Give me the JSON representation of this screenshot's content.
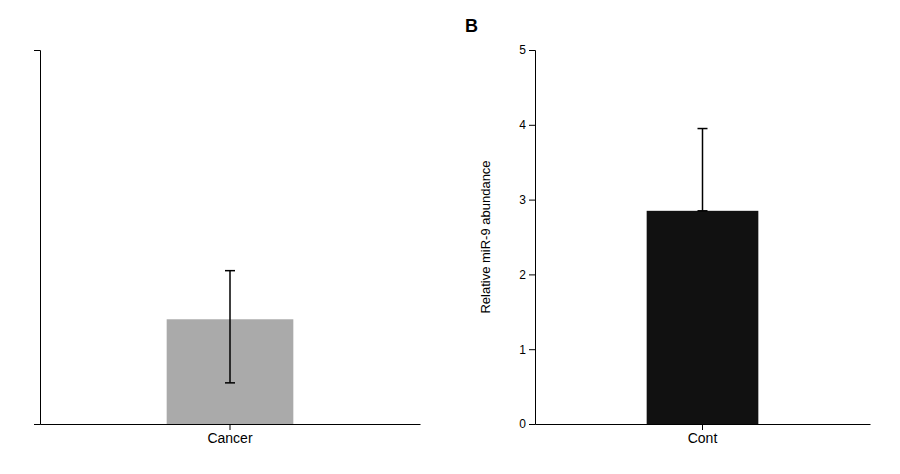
{
  "chart_data": [
    {
      "type": "bar",
      "categories": [
        "Cancer"
      ],
      "values": [
        1.4
      ],
      "error_up": [
        0.65
      ],
      "error_down": [
        0.85
      ],
      "color": "#aaaaaa",
      "ylim": [
        0,
        5
      ],
      "tick_labels": "x"
    },
    {
      "type": "bar",
      "title": "B",
      "categories": [
        "Cont"
      ],
      "values": [
        2.85
      ],
      "error_up": [
        1.1
      ],
      "error_down": [
        0.0
      ],
      "color": "#111111",
      "ylim": [
        0,
        5
      ],
      "yticks": [
        0,
        1,
        2,
        3,
        4,
        5
      ],
      "ylabel": "Relative miR-9 abundance"
    }
  ]
}
